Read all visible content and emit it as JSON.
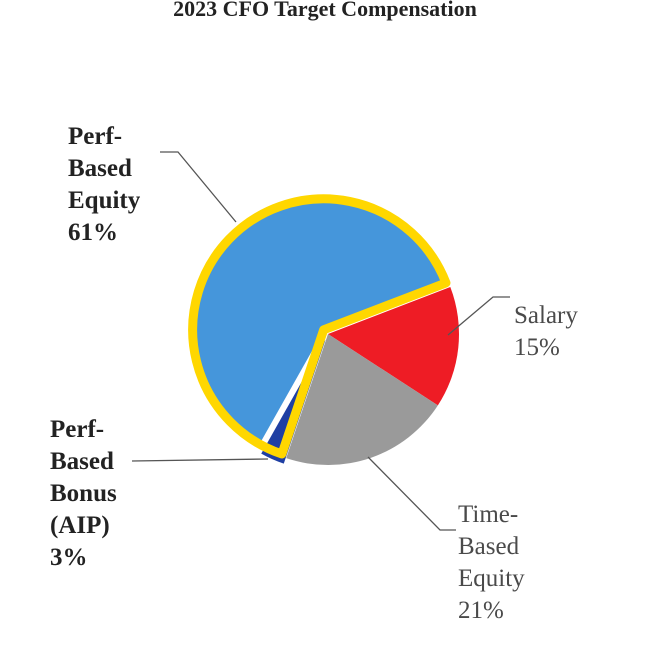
{
  "chart_data": {
    "type": "pie",
    "title": "2023 CFO Target Compensation",
    "start_angle_deg": 21,
    "slices": [
      {
        "id": "salary",
        "label": "Salary",
        "value": 15,
        "value_label": "15%",
        "color": "#ee1c25",
        "highlight": false
      },
      {
        "id": "time-equity",
        "label": "Time-\nBased\nEquity",
        "value": 21,
        "value_label": "21%",
        "color": "#9a9a9a",
        "highlight": false
      },
      {
        "id": "perf-bonus",
        "label": "Perf-\nBased\nBonus\n(AIP)",
        "value": 3,
        "value_label": "3%",
        "color": "#1f3fa3",
        "highlight": true
      },
      {
        "id": "perf-equity",
        "label": "Perf-\nBased\nEquity",
        "value": 61,
        "value_label": "61%",
        "color": "#4596db",
        "highlight": true
      }
    ],
    "highlight_color": "#ffd700",
    "leader_color": "#555555"
  }
}
